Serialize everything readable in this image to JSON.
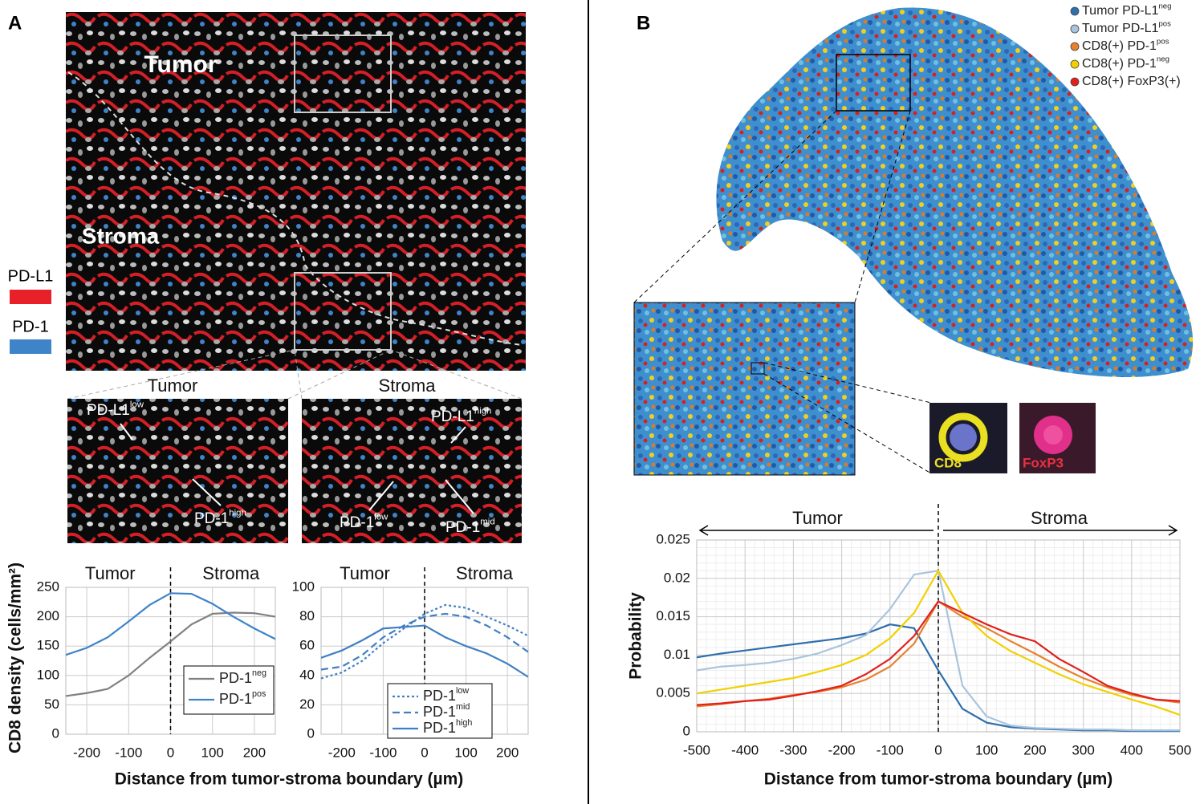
{
  "panel_a": {
    "label": "A",
    "image_labels": [
      "Tumor",
      "Stroma"
    ],
    "stain_legend": [
      {
        "name": "PD-L1",
        "color": "#e8202a"
      },
      {
        "name": "PD-1",
        "color": "#3f83c9"
      }
    ],
    "insets": [
      {
        "title": "Tumor",
        "annotations": [
          {
            "text": "PD-L1",
            "sup": "low"
          },
          {
            "text": "PD-1",
            "sup": "high"
          }
        ]
      },
      {
        "title": "Stroma",
        "annotations": [
          {
            "text": "PD-L1",
            "sup": "high"
          },
          {
            "text": "PD-1",
            "sup": "low"
          },
          {
            "text": "PD-1",
            "sup": "mid"
          }
        ]
      }
    ]
  },
  "panel_b": {
    "label": "B",
    "cell_labels": [
      "CD8",
      "FoxP3"
    ]
  },
  "chart_data": [
    {
      "type": "line",
      "x": [
        -250,
        -200,
        -150,
        -100,
        -50,
        0,
        50,
        100,
        150,
        200,
        250
      ],
      "xlim": [
        -250,
        250
      ],
      "xticks": [
        -200,
        -100,
        0,
        100,
        200
      ],
      "ylim": [
        0,
        250
      ],
      "yticks": [
        0,
        50,
        100,
        150,
        200,
        250
      ],
      "grid": true,
      "y_label": "CD8 density (cells/mm²)",
      "x_label": "Distance from tumor-stroma boundary (µm)",
      "regions": [
        "Tumor",
        "Stroma"
      ],
      "series": [
        {
          "name": "PD-1",
          "name_sup": "neg",
          "color": "#808080",
          "dash": "solid",
          "values": [
            65,
            70,
            77,
            100,
            130,
            158,
            187,
            205,
            207,
            206,
            200
          ]
        },
        {
          "name": "PD-1",
          "name_sup": "pos",
          "color": "#3f83c9",
          "dash": "solid",
          "values": [
            135,
            147,
            165,
            192,
            220,
            240,
            239,
            222,
            200,
            180,
            162
          ]
        }
      ]
    },
    {
      "type": "line",
      "x": [
        -250,
        -200,
        -150,
        -100,
        -50,
        0,
        50,
        100,
        150,
        200,
        250
      ],
      "xlim": [
        -250,
        250
      ],
      "xticks": [
        -200,
        -100,
        0,
        100,
        200
      ],
      "ylim": [
        0,
        100
      ],
      "yticks": [
        0,
        20,
        40,
        60,
        80,
        100
      ],
      "grid": true,
      "regions": [
        "Tumor",
        "Stroma"
      ],
      "series": [
        {
          "name": "PD-1",
          "name_sup": "low",
          "color": "#3f7fc4",
          "dash": "dotted",
          "values": [
            38,
            42,
            50,
            62,
            72,
            82,
            88,
            86,
            80,
            74,
            67
          ]
        },
        {
          "name": "PD-1",
          "name_sup": "mid",
          "color": "#3f7fc4",
          "dash": "dashed",
          "values": [
            44,
            46,
            54,
            66,
            74,
            80,
            82,
            80,
            74,
            66,
            56
          ]
        },
        {
          "name": "PD-1",
          "name_sup": "high",
          "color": "#3f7fc4",
          "dash": "solid",
          "values": [
            52,
            57,
            64,
            72,
            73,
            74,
            66,
            60,
            55,
            48,
            39
          ]
        }
      ]
    },
    {
      "type": "line",
      "x": [
        -500,
        -450,
        -400,
        -350,
        -300,
        -250,
        -200,
        -150,
        -100,
        -50,
        0,
        50,
        100,
        150,
        200,
        250,
        300,
        350,
        400,
        450,
        500
      ],
      "xlim": [
        -500,
        500
      ],
      "xticks": [
        -500,
        -400,
        -300,
        -200,
        -100,
        0,
        100,
        200,
        300,
        400,
        500
      ],
      "ylim": [
        0,
        0.025
      ],
      "yticks": [
        0,
        0.005,
        0.01,
        0.015,
        0.02,
        0.025
      ],
      "grid": true,
      "minor_grid": true,
      "y_label": "Probability",
      "x_label": "Distance from tumor-stroma boundary (µm)",
      "regions": [
        "Tumor",
        "Stroma"
      ],
      "series": [
        {
          "name": "Tumor PD-L1",
          "name_sup": "neg",
          "color": "#2e6fad",
          "values": [
            0.0097,
            0.0102,
            0.0106,
            0.011,
            0.0114,
            0.0118,
            0.0122,
            0.0128,
            0.014,
            0.0135,
            0.008,
            0.003,
            0.0012,
            0.0006,
            0.0004,
            0.0003,
            0.0002,
            0.0002,
            0.0001,
            0.0001,
            0.0001
          ]
        },
        {
          "name": "Tumor PD-L1",
          "name_sup": "pos",
          "color": "#a9c4dd",
          "values": [
            0.008,
            0.0085,
            0.0087,
            0.009,
            0.0095,
            0.0102,
            0.0113,
            0.0126,
            0.016,
            0.0205,
            0.021,
            0.006,
            0.002,
            0.0008,
            0.0005,
            0.0004,
            0.0003,
            0.0003,
            0.0002,
            0.0002,
            0.0002
          ]
        },
        {
          "name": "CD8(+) PD-1",
          "name_sup": "pos",
          "color": "#e8802c",
          "values": [
            0.0033,
            0.0036,
            0.004,
            0.0043,
            0.0048,
            0.0052,
            0.0058,
            0.0068,
            0.0085,
            0.0115,
            0.017,
            0.015,
            0.0135,
            0.0118,
            0.0102,
            0.0085,
            0.007,
            0.0058,
            0.0048,
            0.0042,
            0.0038
          ]
        },
        {
          "name": "CD8(+) PD-1",
          "name_sup": "neg",
          "color": "#f2d000",
          "values": [
            0.005,
            0.0055,
            0.006,
            0.0065,
            0.007,
            0.0078,
            0.0087,
            0.01,
            0.0122,
            0.0155,
            0.021,
            0.0155,
            0.0125,
            0.0105,
            0.009,
            0.0075,
            0.0062,
            0.0052,
            0.0042,
            0.0033,
            0.0022
          ]
        },
        {
          "name": "CD8(+) FoxP3(+)",
          "color": "#e0201b",
          "values": [
            0.0035,
            0.0037,
            0.004,
            0.0042,
            0.0047,
            0.0053,
            0.006,
            0.0075,
            0.0095,
            0.0125,
            0.017,
            0.0155,
            0.014,
            0.0127,
            0.0118,
            0.0095,
            0.0078,
            0.006,
            0.005,
            0.0042,
            0.004
          ]
        }
      ]
    }
  ]
}
